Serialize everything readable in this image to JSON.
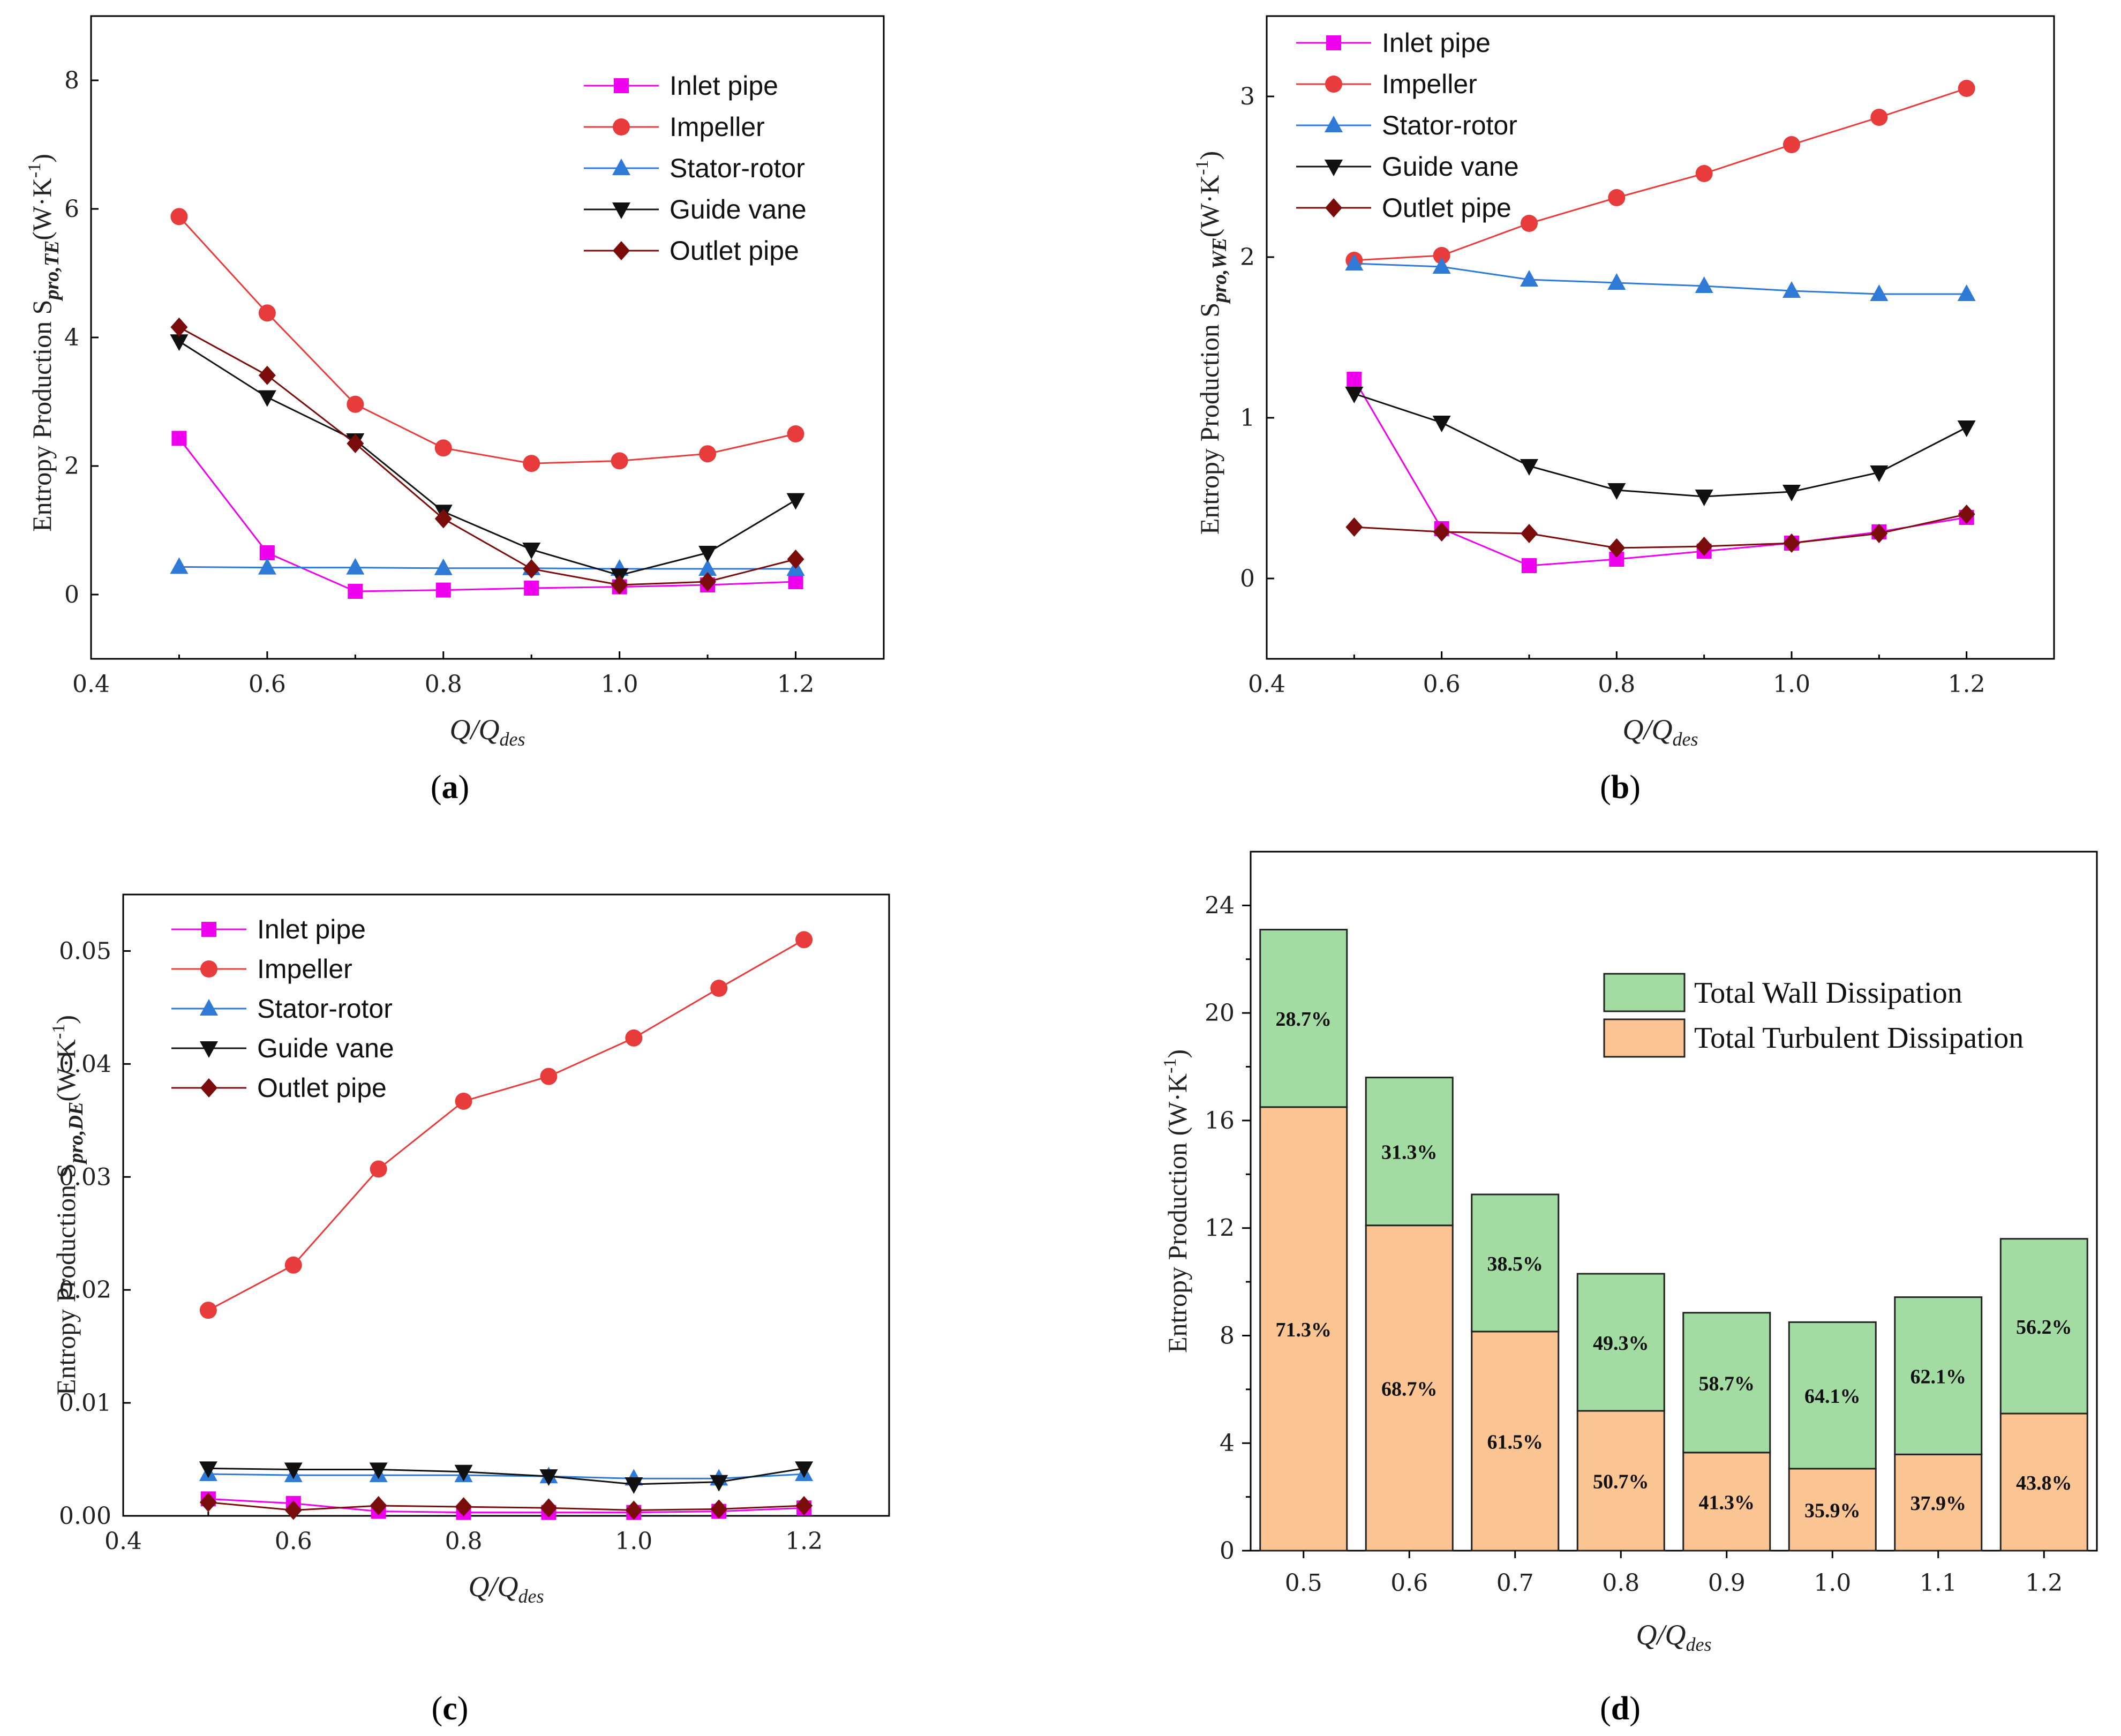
{
  "chart_data": [
    {
      "type": "line",
      "panel_label": "a",
      "xlabel": "Q/Q",
      "xlabel_sub": "des",
      "ylabel": "Entropy Production S",
      "ylabel_sub": "pro,TE",
      "ylabel_unit": "(W·K",
      "ylabel_sup": "-1",
      "ylabel_close": ")",
      "xlim": [
        0.4,
        1.3
      ],
      "ylim": [
        -1,
        9
      ],
      "xticks": [
        "0.4",
        "0.6",
        "0.8",
        "1.0",
        "1.2"
      ],
      "yticks": [
        "0",
        "2",
        "4",
        "6",
        "8"
      ],
      "x": [
        0.5,
        0.6,
        0.7,
        0.8,
        0.9,
        1.0,
        1.1,
        1.2
      ],
      "series": [
        {
          "name": "Inlet pipe",
          "values": [
            2.43,
            0.65,
            0.05,
            0.07,
            0.1,
            0.12,
            0.15,
            0.2
          ]
        },
        {
          "name": "Impeller",
          "values": [
            5.88,
            4.38,
            2.96,
            2.28,
            2.04,
            2.08,
            2.19,
            2.5
          ]
        },
        {
          "name": "Stator-rotor",
          "values": [
            0.43,
            0.42,
            0.42,
            0.41,
            0.41,
            0.4,
            0.4,
            0.4
          ]
        },
        {
          "name": "Guide vane",
          "values": [
            3.94,
            3.07,
            2.4,
            1.29,
            0.7,
            0.3,
            0.65,
            1.47
          ]
        },
        {
          "name": "Outlet pipe",
          "values": [
            4.16,
            3.41,
            2.35,
            1.18,
            0.4,
            0.15,
            0.2,
            0.55
          ]
        }
      ]
    },
    {
      "type": "line",
      "panel_label": "b",
      "xlabel": "Q/Q",
      "xlabel_sub": "des",
      "ylabel": "Entropy Production S",
      "ylabel_sub": "pro,WE",
      "ylabel_unit": "(W·K",
      "ylabel_sup": "-1",
      "ylabel_close": ")",
      "xlim": [
        0.4,
        1.3
      ],
      "ylim": [
        -0.5,
        3.5
      ],
      "xticks": [
        "0.4",
        "0.6",
        "0.8",
        "1.0",
        "1.2"
      ],
      "yticks": [
        "0",
        "1",
        "2",
        "3"
      ],
      "x": [
        0.5,
        0.6,
        0.7,
        0.8,
        0.9,
        1.0,
        1.1,
        1.2
      ],
      "series": [
        {
          "name": "Inlet pipe",
          "values": [
            1.24,
            0.31,
            0.08,
            0.12,
            0.17,
            0.22,
            0.29,
            0.38
          ]
        },
        {
          "name": "Impeller",
          "values": [
            1.98,
            2.01,
            2.21,
            2.37,
            2.52,
            2.7,
            2.87,
            3.05
          ]
        },
        {
          "name": "Stator-rotor",
          "values": [
            1.96,
            1.94,
            1.86,
            1.84,
            1.82,
            1.79,
            1.77,
            1.77
          ]
        },
        {
          "name": "Guide vane",
          "values": [
            1.15,
            0.97,
            0.7,
            0.55,
            0.51,
            0.54,
            0.66,
            0.94
          ]
        },
        {
          "name": "Outlet pipe",
          "values": [
            0.32,
            0.29,
            0.28,
            0.19,
            0.2,
            0.22,
            0.28,
            0.4
          ]
        }
      ]
    },
    {
      "type": "line",
      "panel_label": "c",
      "xlabel": "Q/Q",
      "xlabel_sub": "des",
      "ylabel": "Entropy Production S",
      "ylabel_sub": "pro,DE",
      "ylabel_unit": "(W·K",
      "ylabel_sup": "-1",
      "ylabel_close": ")",
      "xlim": [
        0.4,
        1.3
      ],
      "ylim": [
        0,
        0.055
      ],
      "xticks": [
        "0.4",
        "0.6",
        "0.8",
        "1.0",
        "1.2"
      ],
      "yticks": [
        "0.00",
        "0.01",
        "0.02",
        "0.03",
        "0.04",
        "0.05"
      ],
      "x": [
        0.5,
        0.6,
        0.7,
        0.8,
        0.9,
        1.0,
        1.1,
        1.2
      ],
      "series": [
        {
          "name": "Inlet pipe",
          "values": [
            0.0015,
            0.0011,
            0.0004,
            0.0003,
            0.0003,
            0.0003,
            0.0004,
            0.0007
          ]
        },
        {
          "name": "Impeller",
          "values": [
            0.0182,
            0.0222,
            0.0307,
            0.0367,
            0.0389,
            0.0423,
            0.0467,
            0.051
          ]
        },
        {
          "name": "Stator-rotor",
          "values": [
            0.0037,
            0.0036,
            0.0036,
            0.0036,
            0.0035,
            0.0033,
            0.0033,
            0.0037
          ]
        },
        {
          "name": "Guide vane",
          "values": [
            0.0042,
            0.0041,
            0.0041,
            0.0039,
            0.0035,
            0.0028,
            0.003,
            0.0042
          ]
        },
        {
          "name": "Outlet pipe",
          "values": [
            0.0012,
            0.0005,
            0.0009,
            0.0008,
            0.0007,
            0.0005,
            0.0006,
            0.0009
          ]
        }
      ]
    },
    {
      "type": "bar",
      "stacked": true,
      "panel_label": "d",
      "xlabel": "Q/Q",
      "xlabel_sub": "des",
      "ylabel": "Entropy Production (W·K",
      "ylabel_sup": "-1",
      "ylabel_close": ")",
      "ylim": [
        0,
        26
      ],
      "yticks": [
        "0",
        "4",
        "8",
        "12",
        "16",
        "20",
        "24"
      ],
      "categories": [
        "0.5",
        "0.6",
        "0.7",
        "0.8",
        "0.9",
        "1.0",
        "1.1",
        "1.2"
      ],
      "series": [
        {
          "name": "Total Turbulent Dissipation",
          "values": [
            16.5,
            12.1,
            8.15,
            5.2,
            3.65,
            3.05,
            3.58,
            5.1
          ],
          "labels": [
            "71.3%",
            "68.7%",
            "61.5%",
            "50.7%",
            "41.3%",
            "35.9%",
            "37.9%",
            "43.8%"
          ]
        },
        {
          "name": "Total Wall Dissipation",
          "values": [
            6.6,
            5.5,
            5.1,
            5.1,
            5.2,
            5.45,
            5.85,
            6.5
          ],
          "labels": [
            "28.7%",
            "31.3%",
            "38.5%",
            "49.3%",
            "58.7%",
            "64.1%",
            "62.1%",
            "56.2%"
          ]
        }
      ]
    }
  ],
  "colors": {
    "inlet": "#ee00ee",
    "impeller": "#e83b3b",
    "stator": "#2f7ad6",
    "guide": "#111111",
    "outlet": "#7a0c0c",
    "wall_fill": "#a3dca2",
    "turb_fill": "#fbc493"
  }
}
